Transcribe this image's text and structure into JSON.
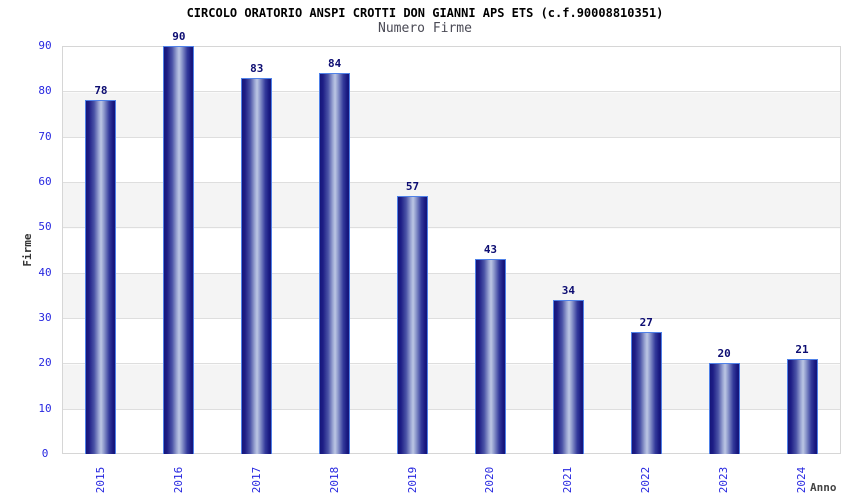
{
  "chart_data": {
    "type": "bar",
    "title": "CIRCOLO ORATORIO ANSPI CROTTI DON GIANNI APS ETS (c.f.90008810351)",
    "subtitle": "Numero Firme",
    "xlabel": "Anno",
    "ylabel": "Firme",
    "categories": [
      "2015",
      "2016",
      "2017",
      "2018",
      "2019",
      "2020",
      "2021",
      "2022",
      "2023",
      "2024"
    ],
    "values": [
      78,
      90,
      83,
      84,
      57,
      43,
      34,
      27,
      20,
      21
    ],
    "ylim": [
      0,
      90
    ],
    "ytick_step": 10,
    "grid": true,
    "background_stripes": true,
    "legend": "none",
    "colors": {
      "bar_border": "#4f81e8",
      "bar_dark": "#16167a",
      "bar_light": "#bcc6e4",
      "axis_tick_text": "#2727e0",
      "value_label": "#0d0d72",
      "stripe_gray": "#f4f4f4",
      "gridline": "#dedede",
      "plot_border": "#d6d6d6",
      "title_text": "#000000",
      "subtitle_text": "#4a4a55"
    }
  }
}
